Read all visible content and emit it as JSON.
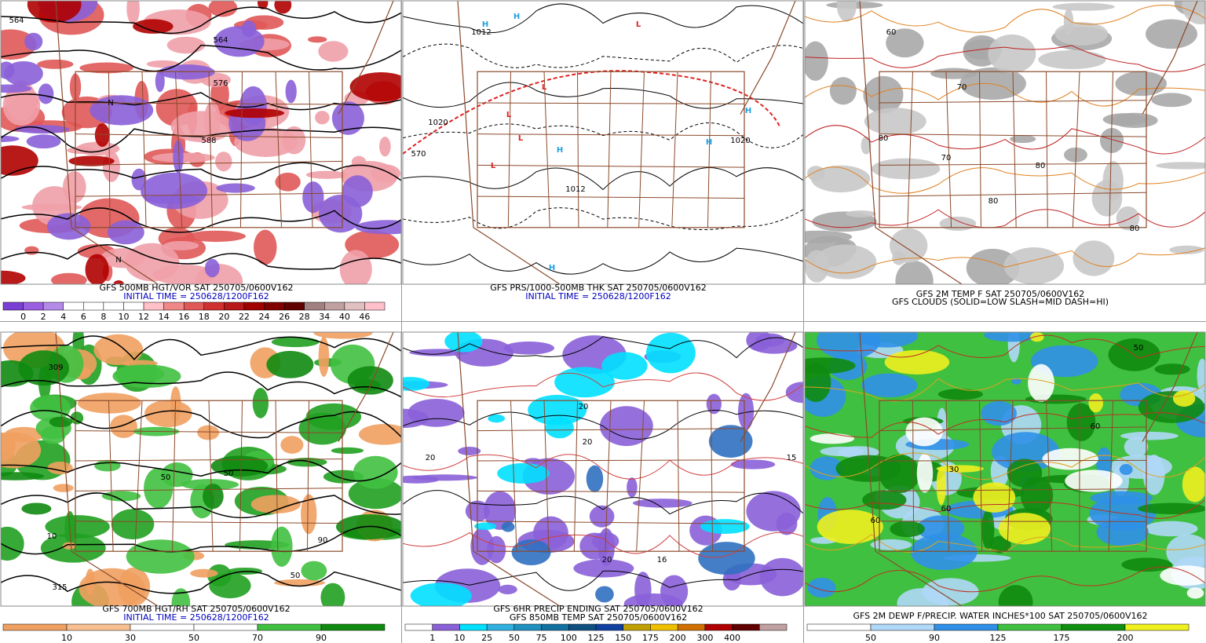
{
  "panels": [
    {
      "caption": [
        {
          "text": "GFS 500MB HGT/VOR SAT 250705/0600V162",
          "color": "#000000"
        },
        {
          "text": "INITIAL TIME = 250628/1200F162",
          "color": "#0000c0"
        }
      ],
      "map_labels": [
        "564",
        "564",
        "576",
        "588",
        "N",
        "N"
      ],
      "colorbar": {
        "colors": [
          "#7a3fd4",
          "#9a5fe0",
          "#b48ae8",
          "#ffffff",
          "#ffffff",
          "#ffffff",
          "#ffffff",
          "#ffc0c8",
          "#f08888",
          "#e05858",
          "#d03030",
          "#b81818",
          "#a00000",
          "#800000",
          "#600000",
          "#a08080",
          "#c0a0a0",
          "#e0c0c0",
          "#ffc0cb"
        ],
        "labels": [
          "0",
          "2",
          "4",
          "6",
          "8",
          "10",
          "12",
          "14",
          "16",
          "18",
          "20",
          "22",
          "24",
          "26",
          "28",
          "34",
          "40",
          "46"
        ]
      }
    },
    {
      "caption": [
        {
          "text": "GFS PRS/1000-500MB THK SAT 250705/0600V162",
          "color": "#000000"
        },
        {
          "text": "INITIAL TIME = 250628/1200F162",
          "color": "#0000c0"
        }
      ],
      "map_labels": [
        "H",
        "H",
        "L",
        "L",
        "L",
        "L",
        "L",
        "H",
        "H",
        "H",
        "H",
        "1012",
        "1020",
        "1020",
        "1012",
        "570"
      ]
    },
    {
      "caption": [
        {
          "text": "GFS 2M TEMP F SAT 250705/0600V162",
          "color": "#000000"
        },
        {
          "text": "GFS CLOUDS (SOLID=LOW SLASH=MID DASH=HI)",
          "color": "#000000"
        }
      ],
      "map_labels": [
        "60",
        "70",
        "80",
        "80",
        "70",
        "80",
        "80"
      ]
    },
    {
      "caption": [
        {
          "text": "GFS 700MB HGT/RH SAT 250705/0600V162",
          "color": "#000000"
        },
        {
          "text": "INITIAL TIME = 250628/1200F162",
          "color": "#0000c0"
        }
      ],
      "map_labels": [
        "309",
        "50",
        "50",
        "90",
        "10",
        "315",
        "50"
      ],
      "colorbar": {
        "colors": [
          "#f0a060",
          "#f8c090",
          "#ffffff",
          "#ffffff",
          "#40c040",
          "#108a10"
        ],
        "labels": [
          "10",
          "30",
          "50",
          "70",
          "90"
        ]
      }
    },
    {
      "caption": [
        {
          "text": "GFS 6HR PRECIP ENDING SAT 250705/0600V162",
          "color": "#000000"
        },
        {
          "text": "GFS 850MB TEMP SAT 250705/0600V162",
          "color": "#000000"
        }
      ],
      "map_labels": [
        "20",
        "20",
        "20",
        "16",
        "15",
        "20"
      ],
      "colorbar": {
        "colors": [
          "#ffffff",
          "#8a60d8",
          "#00e0ff",
          "#30b0e0",
          "#2090c0",
          "#1070a0",
          "#105080",
          "#1040a0",
          "#c0a000",
          "#f0c000",
          "#d07000",
          "#b00000",
          "#600000",
          "#c0a0a0"
        ],
        "labels": [
          "1",
          "10",
          "25",
          "50",
          "75",
          "100",
          "125",
          "150",
          "175",
          "200",
          "300",
          "400"
        ]
      }
    },
    {
      "caption": [
        {
          "text": "GFS 2M DEWP F/PRECIP. WATER INCHES*100 SAT 250705/0600V162",
          "color": "#000000"
        }
      ],
      "map_labels": [
        "50",
        "60",
        "60",
        "30",
        "60"
      ],
      "colorbar": {
        "colors": [
          "#ffffff",
          "#b0d8f8",
          "#3090e8",
          "#40c040",
          "#109010",
          "#f0f020"
        ],
        "labels": [
          "50",
          "90",
          "125",
          "175",
          "200"
        ]
      }
    }
  ]
}
